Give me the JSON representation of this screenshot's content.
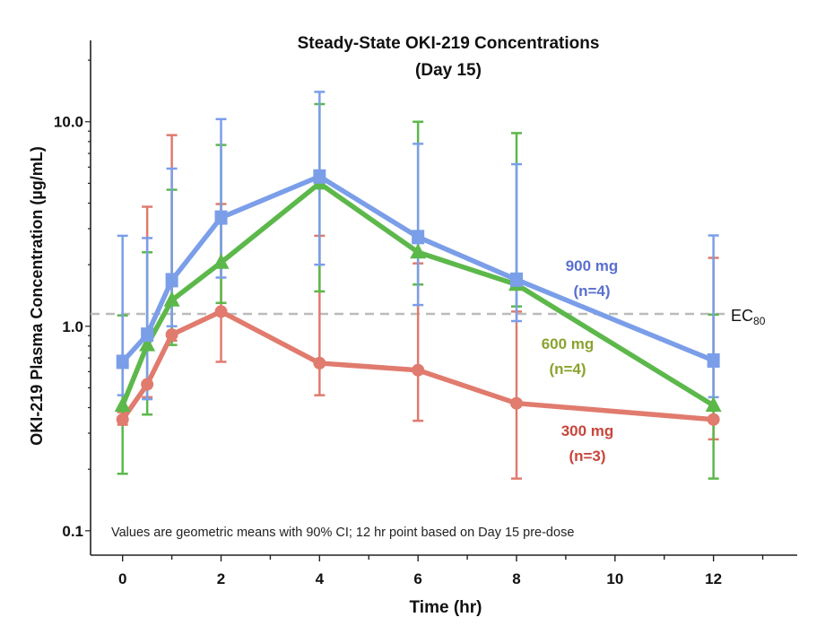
{
  "chart_data": {
    "type": "line",
    "title": [
      "Steady-State OKI-219 Concentrations",
      "(Day 15)"
    ],
    "xlabel": "Time (hr)",
    "ylabel": "OKI-219 Plasma Concentration (µg/mL)",
    "yscale": "log",
    "xlim": [
      -0.65,
      13.7
    ],
    "ylim": [
      0.076,
      25
    ],
    "x_ticks": [
      0,
      2,
      4,
      6,
      8,
      10,
      12
    ],
    "x_tick_labels": [
      "0",
      "2",
      "4",
      "6",
      "8",
      "10",
      "12"
    ],
    "y_ticks": [
      0.1,
      1.0,
      10.0
    ],
    "y_tick_labels": [
      "0.1",
      "1.0",
      "10.0"
    ],
    "grid": false,
    "x": [
      0,
      0.5,
      1,
      2,
      4,
      6,
      8,
      12
    ],
    "series": [
      {
        "name": "300 mg",
        "n_label": "(n=3)",
        "color": "#e07b6e",
        "label_color": "#c8463b",
        "marker": "circle",
        "values": [
          0.35,
          0.52,
          0.91,
          1.18,
          0.66,
          0.61,
          0.42,
          0.35
        ],
        "ci_lower": [
          0.33,
          0.45,
          0.85,
          0.67,
          0.46,
          0.345,
          0.18,
          0.28
        ],
        "ci_upper": [
          0.38,
          3.84,
          8.6,
          3.96,
          2.77,
          2.03,
          1.18,
          2.16
        ]
      },
      {
        "name": "600 mg",
        "n_label": "(n=4)",
        "color": "#5cb84a",
        "label_color": "#8aa32e",
        "marker": "triangle",
        "values": [
          0.41,
          0.81,
          1.34,
          2.05,
          5.0,
          2.3,
          1.6,
          0.41
        ],
        "ci_lower": [
          0.19,
          0.37,
          0.81,
          1.3,
          1.48,
          1.6,
          1.25,
          0.18
        ],
        "ci_upper": [
          1.13,
          2.3,
          4.65,
          7.7,
          12.2,
          10.0,
          8.8,
          1.14
        ]
      },
      {
        "name": "900 mg",
        "n_label": "(n=4)",
        "color": "#7b9ee9",
        "label_color": "#5a6fcf",
        "marker": "square",
        "values": [
          0.67,
          0.91,
          1.68,
          3.4,
          5.4,
          2.73,
          1.69,
          0.68
        ],
        "ci_lower": [
          0.46,
          0.44,
          1.0,
          1.73,
          2.0,
          1.27,
          1.06,
          0.45
        ],
        "ci_upper": [
          2.77,
          2.7,
          5.9,
          10.3,
          14.0,
          7.8,
          6.2,
          2.78
        ]
      }
    ],
    "reference_line": {
      "label": "EC",
      "label_sub": "80",
      "value": 1.15,
      "color": "#bbbbbb",
      "style": "dashed"
    },
    "annotation": "Values are geometric means with 90% CI; 12 hr point based on Day 15 pre-dose"
  }
}
